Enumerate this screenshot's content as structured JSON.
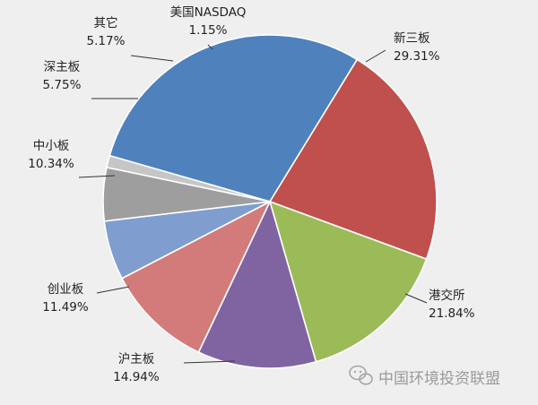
{
  "chart_data": {
    "type": "pie",
    "title": "",
    "slices": [
      {
        "label": "新三板",
        "value_text": "29.31%",
        "value": 29.31,
        "color": "#4f81bd"
      },
      {
        "label": "港交所",
        "value_text": "21.84%",
        "value": 21.84,
        "color": "#c0504d"
      },
      {
        "label": "沪主板",
        "value_text": "14.94%",
        "value": 14.94,
        "color": "#9bbb59"
      },
      {
        "label": "创业板",
        "value_text": "11.49%",
        "value": 11.49,
        "color": "#8064a2"
      },
      {
        "label": "中小板",
        "value_text": "10.34%",
        "value": 10.34,
        "color": "#d37b7a"
      },
      {
        "label": "深主板",
        "value_text": "5.75%",
        "value": 5.75,
        "color": "#7f9ecf"
      },
      {
        "label": "其它",
        "value_text": "5.17%",
        "value": 5.17,
        "color": "#9e9e9e"
      },
      {
        "label": "美国NASDAQ",
        "value_text": "1.15%",
        "value": 1.15,
        "color": "#c6c6c6"
      }
    ],
    "legend": "none"
  },
  "watermark": {
    "text": "中国环境投资联盟",
    "icon": "wechat-icon"
  }
}
